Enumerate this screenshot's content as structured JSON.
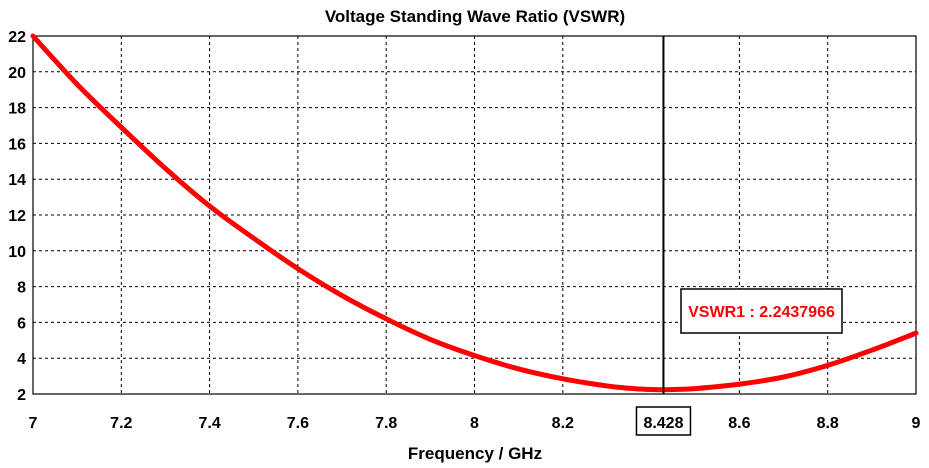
{
  "chart_data": {
    "type": "line",
    "title": "Voltage Standing Wave Ratio (VSWR)",
    "xlabel": "Frequency / GHz",
    "ylabel": "",
    "xlim": [
      7,
      9
    ],
    "ylim": [
      2,
      22
    ],
    "x_ticks": [
      {
        "value": 7,
        "label": "7"
      },
      {
        "value": 7.2,
        "label": "7.2"
      },
      {
        "value": 7.4,
        "label": "7.4"
      },
      {
        "value": 7.6,
        "label": "7.6"
      },
      {
        "value": 7.8,
        "label": "7.8"
      },
      {
        "value": 8,
        "label": "8"
      },
      {
        "value": 8.2,
        "label": "8.2"
      },
      {
        "value": 8.6,
        "label": "8.6"
      },
      {
        "value": 8.8,
        "label": "8.8"
      },
      {
        "value": 9,
        "label": "9"
      }
    ],
    "y_ticks": [
      {
        "value": 2,
        "label": "2"
      },
      {
        "value": 4,
        "label": "4"
      },
      {
        "value": 6,
        "label": "6"
      },
      {
        "value": 8,
        "label": "8"
      },
      {
        "value": 10,
        "label": "10"
      },
      {
        "value": 12,
        "label": "12"
      },
      {
        "value": 14,
        "label": "14"
      },
      {
        "value": 16,
        "label": "16"
      },
      {
        "value": 18,
        "label": "18"
      },
      {
        "value": 20,
        "label": "20"
      },
      {
        "value": 22,
        "label": "22"
      }
    ],
    "grid": true,
    "series": [
      {
        "name": "VSWR",
        "color": "#ff0000",
        "x": [
          7.0,
          7.1,
          7.2,
          7.3,
          7.4,
          7.5,
          7.6,
          7.7,
          7.8,
          7.9,
          8.0,
          8.1,
          8.2,
          8.3,
          8.35,
          8.4,
          8.428,
          8.45,
          8.5,
          8.6,
          8.7,
          8.8,
          8.9,
          9.0
        ],
        "y": [
          22.0,
          19.3,
          16.9,
          14.6,
          12.5,
          10.7,
          9.0,
          7.5,
          6.2,
          5.05,
          4.15,
          3.4,
          2.85,
          2.45,
          2.32,
          2.25,
          2.24,
          2.25,
          2.3,
          2.55,
          2.95,
          3.6,
          4.45,
          5.4
        ]
      }
    ],
    "marker": {
      "x": 8.428,
      "x_label": "8.428",
      "y": 2.2437966,
      "label": "VSWR1 : 2.2437966",
      "line_color": "#000000",
      "text_color": "#ff0000"
    }
  }
}
